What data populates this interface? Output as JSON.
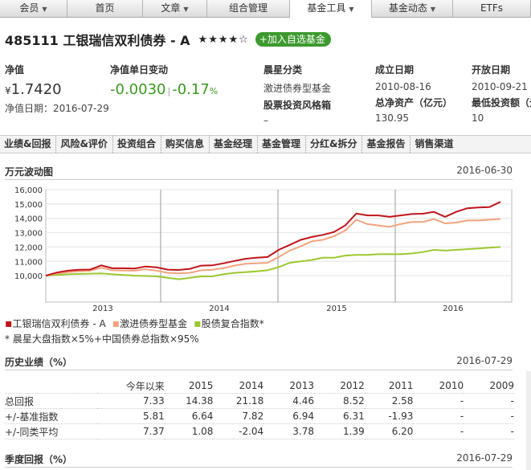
{
  "topnav": {
    "tabs": [
      {
        "label": "会员",
        "caret": "▼",
        "width": 84
      },
      {
        "label": "首页",
        "caret": "",
        "width": 94
      },
      {
        "label": "文章",
        "caret": "▼",
        "width": 80
      },
      {
        "label": "组合管理",
        "caret": "",
        "width": 103
      },
      {
        "label": "基金工具",
        "caret": "▼",
        "width": 102,
        "active": true
      },
      {
        "label": "基金动态",
        "caret": "▼",
        "width": 101
      },
      {
        "label": "ETFs",
        "caret": "",
        "width": 97
      }
    ]
  },
  "fund": {
    "title": "485111 工银瑞信双利债券 - A",
    "stars": "★★★★☆",
    "add_label": "+加入自选基金",
    "nav_label": "净值",
    "currency": "¥",
    "nav_value": "1.7420",
    "nav_date": "净值日期：2016-07-29",
    "change_label": "净值单日变动",
    "change_value": "-0.0030",
    "change_sep": "|",
    "change_pct": "-0.17",
    "pct_sign": "%",
    "category_label": "晨星分类",
    "category_value": "激进债券型基金",
    "style_label": "股票投资风格箱",
    "style_value": "–",
    "inception_label": "成立日期",
    "inception_value": "2010-08-16",
    "assets_label": "总净资产（亿元）",
    "assets_value": "130.95",
    "open_label": "开放日期",
    "open_value": "2010-09-21",
    "min_label": "最低投资额（元",
    "min_value": "10"
  },
  "subnav": [
    "业绩&回报",
    "风险&评价",
    "投资组合",
    "购买信息",
    "基金经理",
    "基金管理",
    "分红&拆分",
    "基金报告",
    "销售渠道"
  ],
  "chart_section": {
    "title": "万元波动图",
    "date": "2016-06-30"
  },
  "chart_data": {
    "type": "line",
    "title": "万元波动图",
    "xlabel": "",
    "ylabel": "",
    "ylim": [
      9000,
      16000
    ],
    "yticks": [
      10000,
      11000,
      12000,
      13000,
      14000,
      15000,
      16000
    ],
    "ytick_labels": [
      "10,000",
      "11,000",
      "12,000",
      "13,000",
      "14,000",
      "15,000",
      "16,000"
    ],
    "xtick_labels": [
      "2013",
      "2014",
      "2015",
      "2016"
    ],
    "grid": true,
    "legend": "bottom",
    "x": [
      0,
      1,
      2,
      3,
      4,
      5,
      6,
      7,
      8,
      9,
      10,
      11,
      12,
      13,
      14,
      15,
      16,
      17,
      18,
      19,
      20,
      21,
      22,
      23,
      24,
      25,
      26,
      27,
      28,
      29,
      30,
      31,
      32,
      33,
      34,
      35,
      36,
      37,
      38,
      39,
      40,
      41
    ],
    "series": [
      {
        "name": "工银瑞信双利债券 - A",
        "color": "#c0141b",
        "values": [
          10000,
          10220,
          10350,
          10410,
          10430,
          10720,
          10520,
          10520,
          10500,
          10640,
          10580,
          10420,
          10400,
          10480,
          10700,
          10720,
          10860,
          11030,
          11180,
          11250,
          11300,
          11800,
          12150,
          12500,
          12700,
          12850,
          13050,
          13500,
          14330,
          14200,
          14200,
          14100,
          14200,
          14300,
          14320,
          14450,
          14100,
          14450,
          14700,
          14750,
          14780,
          15150
        ]
      },
      {
        "name": "激进债券型基金",
        "color": "#f2a37d",
        "values": [
          10000,
          10150,
          10250,
          10300,
          10350,
          10550,
          10380,
          10360,
          10350,
          10450,
          10350,
          10200,
          10160,
          10200,
          10380,
          10410,
          10520,
          10700,
          10830,
          10860,
          10900,
          11300,
          11750,
          12050,
          12400,
          12500,
          12750,
          13150,
          13900,
          13600,
          13500,
          13400,
          13600,
          13750,
          13750,
          13950,
          13650,
          13700,
          13850,
          13850,
          13900,
          13950
        ]
      },
      {
        "name": "股债复合指数*",
        "color": "#9bc82f",
        "values": [
          10000,
          10050,
          10100,
          10120,
          10140,
          10160,
          10100,
          10050,
          10000,
          9980,
          9950,
          9850,
          9750,
          9850,
          9950,
          9950,
          10100,
          10200,
          10250,
          10300,
          10380,
          10600,
          10900,
          11000,
          11100,
          11250,
          11250,
          11400,
          11450,
          11450,
          11500,
          11500,
          11500,
          11550,
          11650,
          11800,
          11750,
          11800,
          11850,
          11900,
          11950,
          12000
        ]
      }
    ]
  },
  "note": "* 晨星大盘指数×5%+中国债券总指数×95%",
  "history": {
    "title": "历史业绩（%）",
    "date": "2016-07-29",
    "columns": [
      "",
      "今年以来",
      "2015",
      "2014",
      "2013",
      "2012",
      "2011",
      "2010",
      "2009"
    ],
    "rows": [
      [
        "总回报",
        "7.33",
        "14.38",
        "21.18",
        "4.46",
        "8.52",
        "2.58",
        "-",
        "-"
      ],
      [
        "+/-基准指数",
        "5.81",
        "6.64",
        "7.82",
        "6.94",
        "6.31",
        "-1.93",
        "-",
        "-"
      ],
      [
        "+/-同类平均",
        "7.37",
        "1.08",
        "-2.04",
        "3.78",
        "1.39",
        "6.20",
        "-",
        "-"
      ]
    ]
  },
  "quarterly": {
    "title": "季度回报（%）",
    "date": "2016-07-29"
  }
}
